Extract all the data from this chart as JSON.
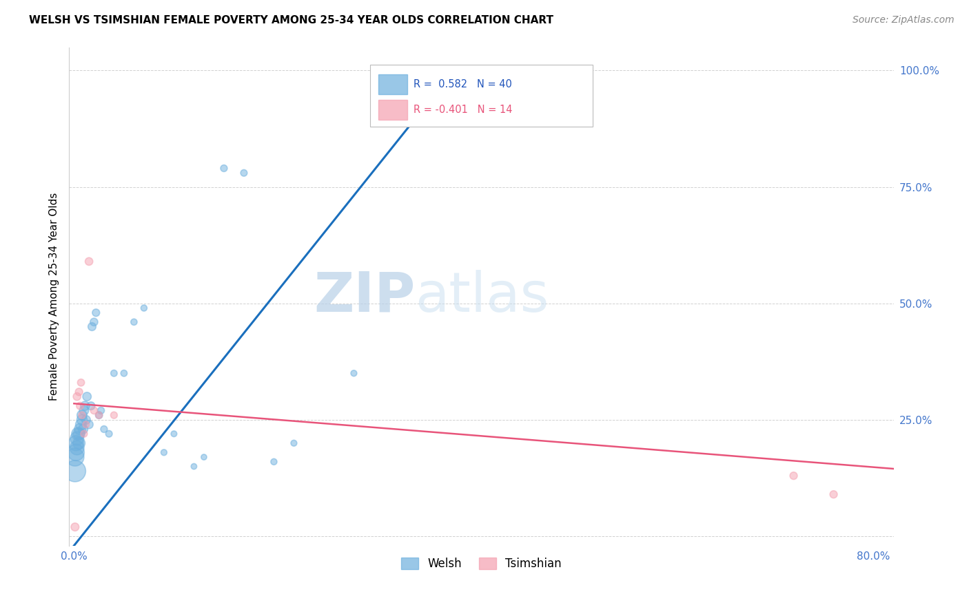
{
  "title": "WELSH VS TSIMSHIAN FEMALE POVERTY AMONG 25-34 YEAR OLDS CORRELATION CHART",
  "source": "Source: ZipAtlas.com",
  "ylabel": "Female Poverty Among 25-34 Year Olds",
  "xlim": [
    -0.005,
    0.82
  ],
  "ylim": [
    -0.02,
    1.05
  ],
  "xticks": [
    0.0,
    0.1,
    0.2,
    0.3,
    0.4,
    0.5,
    0.6,
    0.7,
    0.8
  ],
  "xticklabels": [
    "0.0%",
    "",
    "",
    "",
    "",
    "",
    "",
    "",
    "80.0%"
  ],
  "yticks": [
    0.0,
    0.25,
    0.5,
    0.75,
    1.0
  ],
  "yticklabels": [
    "",
    "25.0%",
    "50.0%",
    "75.0%",
    "100.0%"
  ],
  "welsh_color": "#6eb0de",
  "tsimshian_color": "#f4a0b0",
  "welsh_line_color": "#1a6fbd",
  "tsimshian_line_color": "#e8547a",
  "watermark_zip": "ZIP",
  "watermark_atlas": "atlas",
  "legend_welsh_R": "0.582",
  "legend_welsh_N": "40",
  "legend_tsimshian_R": "-0.401",
  "legend_tsimshian_N": "14",
  "welsh_x": [
    0.001,
    0.001,
    0.002,
    0.002,
    0.003,
    0.003,
    0.004,
    0.005,
    0.005,
    0.006,
    0.007,
    0.008,
    0.008,
    0.009,
    0.01,
    0.011,
    0.012,
    0.013,
    0.015,
    0.017,
    0.018,
    0.02,
    0.022,
    0.025,
    0.027,
    0.03,
    0.035,
    0.04,
    0.05,
    0.06,
    0.07,
    0.09,
    0.1,
    0.12,
    0.13,
    0.15,
    0.17,
    0.2,
    0.22,
    0.28
  ],
  "welsh_y": [
    0.14,
    0.17,
    0.18,
    0.2,
    0.19,
    0.21,
    0.22,
    0.2,
    0.22,
    0.23,
    0.24,
    0.25,
    0.26,
    0.23,
    0.27,
    0.28,
    0.25,
    0.3,
    0.24,
    0.28,
    0.45,
    0.46,
    0.48,
    0.26,
    0.27,
    0.23,
    0.22,
    0.35,
    0.35,
    0.46,
    0.49,
    0.18,
    0.22,
    0.15,
    0.17,
    0.79,
    0.78,
    0.16,
    0.2,
    0.35
  ],
  "welsh_sizes": [
    500,
    350,
    300,
    250,
    220,
    200,
    180,
    160,
    150,
    140,
    130,
    120,
    110,
    100,
    95,
    90,
    85,
    80,
    75,
    70,
    70,
    65,
    60,
    55,
    52,
    50,
    48,
    46,
    45,
    44,
    42,
    40,
    38,
    36,
    35,
    50,
    48,
    42,
    40,
    40
  ],
  "tsimshian_x": [
    0.001,
    0.003,
    0.005,
    0.006,
    0.007,
    0.008,
    0.01,
    0.012,
    0.015,
    0.02,
    0.025,
    0.04,
    0.72,
    0.76
  ],
  "tsimshian_y": [
    0.02,
    0.3,
    0.31,
    0.28,
    0.33,
    0.26,
    0.22,
    0.24,
    0.59,
    0.27,
    0.26,
    0.26,
    0.13,
    0.09
  ],
  "tsimshian_sizes": [
    70,
    65,
    60,
    58,
    55,
    52,
    50,
    48,
    65,
    55,
    52,
    50,
    60,
    60
  ],
  "welsh_line_x0": 0.0,
  "welsh_line_y0": -0.02,
  "welsh_line_x1": 0.38,
  "welsh_line_y1": 1.0,
  "tsim_line_x0": 0.0,
  "tsim_line_y0": 0.285,
  "tsim_line_x1": 0.82,
  "tsim_line_y1": 0.145
}
